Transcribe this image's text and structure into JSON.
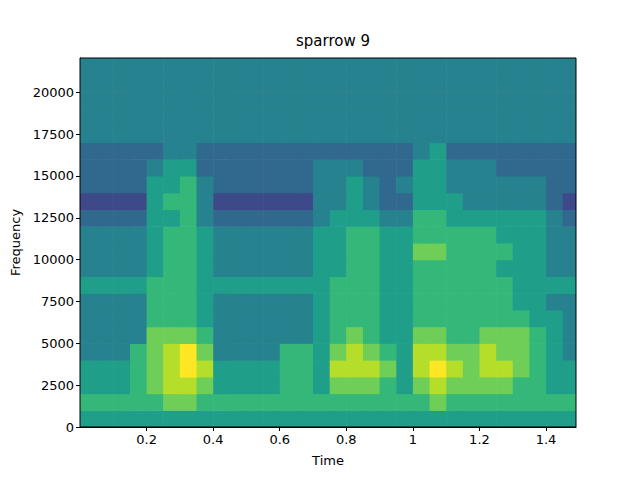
{
  "chart_data": {
    "type": "heatmap",
    "title": "sparrow 9",
    "x_label": "Time",
    "y_label": "Frequency",
    "xlim": [
      0,
      1.49
    ],
    "ylim": [
      0,
      22050
    ],
    "xticks": [
      0.2,
      0.4,
      0.6,
      0.8,
      1.0,
      1.2,
      1.4
    ],
    "yticks": [
      0,
      2500,
      5000,
      7500,
      10000,
      12500,
      15000,
      17500,
      20000
    ],
    "grid": false,
    "time_edges": [
      0,
      0.05,
      0.1,
      0.15,
      0.2,
      0.25,
      0.3,
      0.35,
      0.4,
      0.45,
      0.5,
      0.55,
      0.6,
      0.65,
      0.7,
      0.75,
      0.8,
      0.85,
      0.9,
      0.95,
      1.0,
      1.05,
      1.1,
      1.15,
      1.2,
      1.25,
      1.3,
      1.35,
      1.4,
      1.45,
      1.49
    ],
    "frequency_edges": [
      0,
      1000,
      2000,
      3000,
      4000,
      5000,
      6000,
      7000,
      8000,
      9000,
      10000,
      11000,
      12000,
      13000,
      14000,
      15000,
      16000,
      17000,
      18000,
      19000,
      20000,
      21000,
      22050
    ],
    "zlim": [
      0,
      9
    ],
    "cells": [
      [
        5,
        5,
        5,
        5,
        5,
        5,
        5,
        5,
        5,
        5,
        5,
        5,
        5,
        5,
        5,
        5,
        5,
        5,
        5,
        5,
        5,
        5,
        5,
        5,
        5,
        5,
        5,
        5,
        5,
        5
      ],
      [
        6,
        6,
        6,
        6,
        6,
        7,
        7,
        6,
        6,
        6,
        6,
        6,
        6,
        6,
        6,
        6,
        6,
        6,
        6,
        6,
        6,
        7,
        6,
        6,
        6,
        6,
        6,
        6,
        6,
        6
      ],
      [
        5,
        5,
        5,
        6,
        7,
        8,
        8,
        7,
        5,
        5,
        5,
        5,
        6,
        6,
        5,
        7,
        7,
        7,
        6,
        5,
        7,
        8,
        7,
        7,
        7,
        7,
        6,
        6,
        5,
        5
      ],
      [
        5,
        5,
        5,
        6,
        7,
        8,
        9,
        8,
        5,
        5,
        5,
        5,
        6,
        6,
        5,
        8,
        8,
        8,
        7,
        5,
        8,
        9,
        8,
        7,
        8,
        8,
        7,
        6,
        5,
        5
      ],
      [
        4,
        4,
        4,
        6,
        7,
        8,
        9,
        7,
        4,
        4,
        4,
        4,
        6,
        6,
        5,
        7,
        8,
        7,
        6,
        5,
        8,
        8,
        7,
        7,
        8,
        7,
        7,
        6,
        5,
        4
      ],
      [
        4,
        4,
        4,
        4,
        7,
        7,
        7,
        6,
        4,
        4,
        4,
        4,
        4,
        4,
        5,
        6,
        7,
        6,
        5,
        5,
        7,
        7,
        6,
        6,
        7,
        7,
        7,
        6,
        5,
        4
      ],
      [
        4,
        4,
        4,
        4,
        6,
        6,
        6,
        5,
        4,
        4,
        4,
        4,
        4,
        4,
        5,
        6,
        6,
        6,
        5,
        5,
        6,
        6,
        6,
        6,
        6,
        6,
        6,
        5,
        5,
        4
      ],
      [
        4,
        4,
        4,
        4,
        6,
        6,
        6,
        5,
        4,
        4,
        4,
        4,
        4,
        4,
        5,
        6,
        6,
        6,
        5,
        5,
        6,
        6,
        6,
        6,
        6,
        6,
        5,
        5,
        4,
        4
      ],
      [
        5,
        5,
        5,
        5,
        6,
        6,
        6,
        5,
        5,
        5,
        5,
        5,
        5,
        5,
        5,
        6,
        6,
        6,
        5,
        5,
        6,
        6,
        6,
        6,
        6,
        6,
        5,
        5,
        5,
        5
      ],
      [
        4,
        4,
        4,
        4,
        5,
        6,
        6,
        5,
        4,
        4,
        4,
        4,
        4,
        4,
        5,
        5,
        6,
        6,
        5,
        5,
        6,
        6,
        6,
        6,
        6,
        5,
        5,
        5,
        4,
        4
      ],
      [
        4,
        4,
        4,
        4,
        5,
        6,
        6,
        5,
        4,
        4,
        4,
        4,
        4,
        4,
        5,
        5,
        6,
        6,
        5,
        5,
        7,
        7,
        6,
        6,
        6,
        6,
        5,
        5,
        4,
        4
      ],
      [
        4,
        4,
        4,
        4,
        5,
        6,
        6,
        5,
        4,
        4,
        4,
        4,
        4,
        4,
        5,
        5,
        6,
        6,
        5,
        5,
        6,
        6,
        6,
        6,
        6,
        5,
        5,
        5,
        4,
        4
      ],
      [
        3,
        3,
        3,
        3,
        5,
        5,
        6,
        4,
        3,
        3,
        3,
        3,
        3,
        3,
        4,
        5,
        5,
        5,
        4,
        4,
        6,
        6,
        5,
        5,
        5,
        5,
        5,
        5,
        4,
        3
      ],
      [
        2,
        2,
        2,
        2,
        5,
        6,
        6,
        4,
        2,
        2,
        2,
        2,
        2,
        2,
        4,
        4,
        5,
        4,
        3,
        3,
        5,
        5,
        5,
        4,
        4,
        4,
        4,
        4,
        3,
        2
      ],
      [
        3,
        3,
        3,
        3,
        5,
        5,
        6,
        4,
        3,
        3,
        3,
        3,
        3,
        3,
        4,
        4,
        5,
        4,
        3,
        4,
        5,
        5,
        4,
        4,
        4,
        4,
        4,
        4,
        3,
        3
      ],
      [
        3,
        3,
        3,
        3,
        4,
        5,
        5,
        3,
        3,
        3,
        3,
        3,
        3,
        3,
        4,
        4,
        4,
        3,
        3,
        3,
        5,
        5,
        4,
        4,
        4,
        3,
        3,
        3,
        3,
        3
      ],
      [
        3,
        3,
        3,
        3,
        3,
        4,
        4,
        3,
        3,
        3,
        3,
        3,
        3,
        3,
        3,
        3,
        3,
        3,
        3,
        3,
        4,
        5,
        3,
        3,
        3,
        3,
        3,
        3,
        3,
        3
      ],
      [
        4,
        4,
        4,
        4,
        4,
        4,
        4,
        4,
        4,
        4,
        4,
        4,
        4,
        4,
        4,
        4,
        4,
        4,
        4,
        4,
        4,
        4,
        4,
        4,
        4,
        4,
        4,
        4,
        4,
        4
      ],
      [
        4,
        4,
        4,
        4,
        4,
        4,
        4,
        4,
        4,
        4,
        4,
        4,
        4,
        4,
        4,
        4,
        4,
        4,
        4,
        4,
        4,
        4,
        4,
        4,
        4,
        4,
        4,
        4,
        4,
        4
      ],
      [
        4,
        4,
        4,
        4,
        4,
        4,
        4,
        4,
        4,
        4,
        4,
        4,
        4,
        4,
        4,
        4,
        4,
        4,
        4,
        4,
        4,
        4,
        4,
        4,
        4,
        4,
        4,
        4,
        4,
        4
      ],
      [
        4,
        4,
        4,
        4,
        4,
        4,
        4,
        4,
        4,
        4,
        4,
        4,
        4,
        4,
        4,
        4,
        4,
        4,
        4,
        4,
        4,
        4,
        4,
        4,
        4,
        4,
        4,
        4,
        4,
        4
      ],
      [
        4,
        4,
        4,
        4,
        4,
        4,
        4,
        4,
        4,
        4,
        4,
        4,
        4,
        4,
        4,
        4,
        4,
        4,
        4,
        4,
        4,
        4,
        4,
        4,
        4,
        4,
        4,
        4,
        4,
        4
      ]
    ]
  }
}
